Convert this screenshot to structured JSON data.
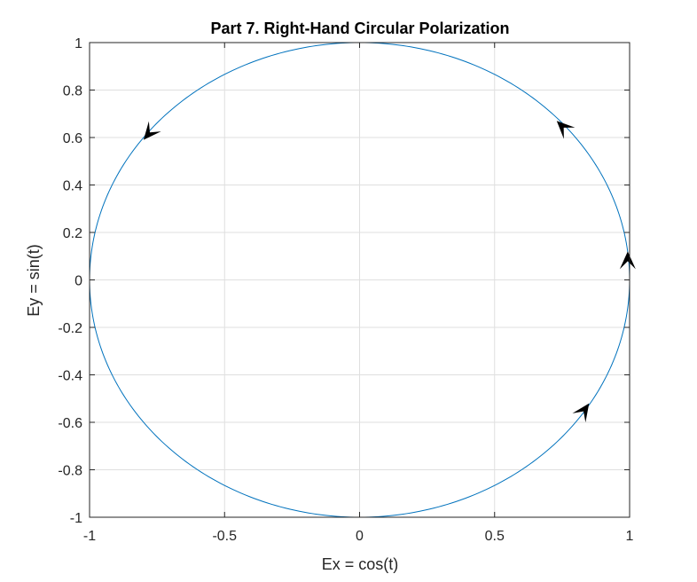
{
  "chart_data": {
    "type": "line",
    "title": "Part 7. Right-Hand Circular Polarization",
    "xlabel": "Ex = cos(t)",
    "ylabel": "Ey = sin(t)",
    "xlim": [
      -1,
      1
    ],
    "ylim": [
      -1,
      1
    ],
    "x_ticks": [
      -1,
      -0.5,
      0,
      0.5,
      1
    ],
    "x_tick_labels": [
      "-1",
      "-0.5",
      "0",
      "0.5",
      "1"
    ],
    "y_ticks": [
      -1,
      -0.8,
      -0.6,
      -0.4,
      -0.2,
      0,
      0.2,
      0.4,
      0.6,
      0.8,
      1
    ],
    "y_tick_labels": [
      "-1",
      "-0.8",
      "-0.6",
      "-0.4",
      "-0.2",
      "0",
      "0.2",
      "0.4",
      "0.6",
      "0.8",
      "1"
    ],
    "grid": true,
    "box": true,
    "curve": {
      "equation": "x = cos(t), y = sin(t)",
      "t_range": [
        0,
        6.2832
      ],
      "samples": 360,
      "color": "#0072BD"
    },
    "arrows": [
      {
        "x": 0.993,
        "y": 0.12,
        "dx": 0.0,
        "dy": 1.0
      },
      {
        "x": 0.73,
        "y": 0.67,
        "dx": -0.67,
        "dy": 0.74
      },
      {
        "x": -0.8,
        "y": 0.59,
        "dx": -0.59,
        "dy": -0.8
      },
      {
        "x": 0.85,
        "y": -0.52,
        "dx": 0.52,
        "dy": 0.85
      }
    ],
    "arrow_color": "#000000"
  }
}
